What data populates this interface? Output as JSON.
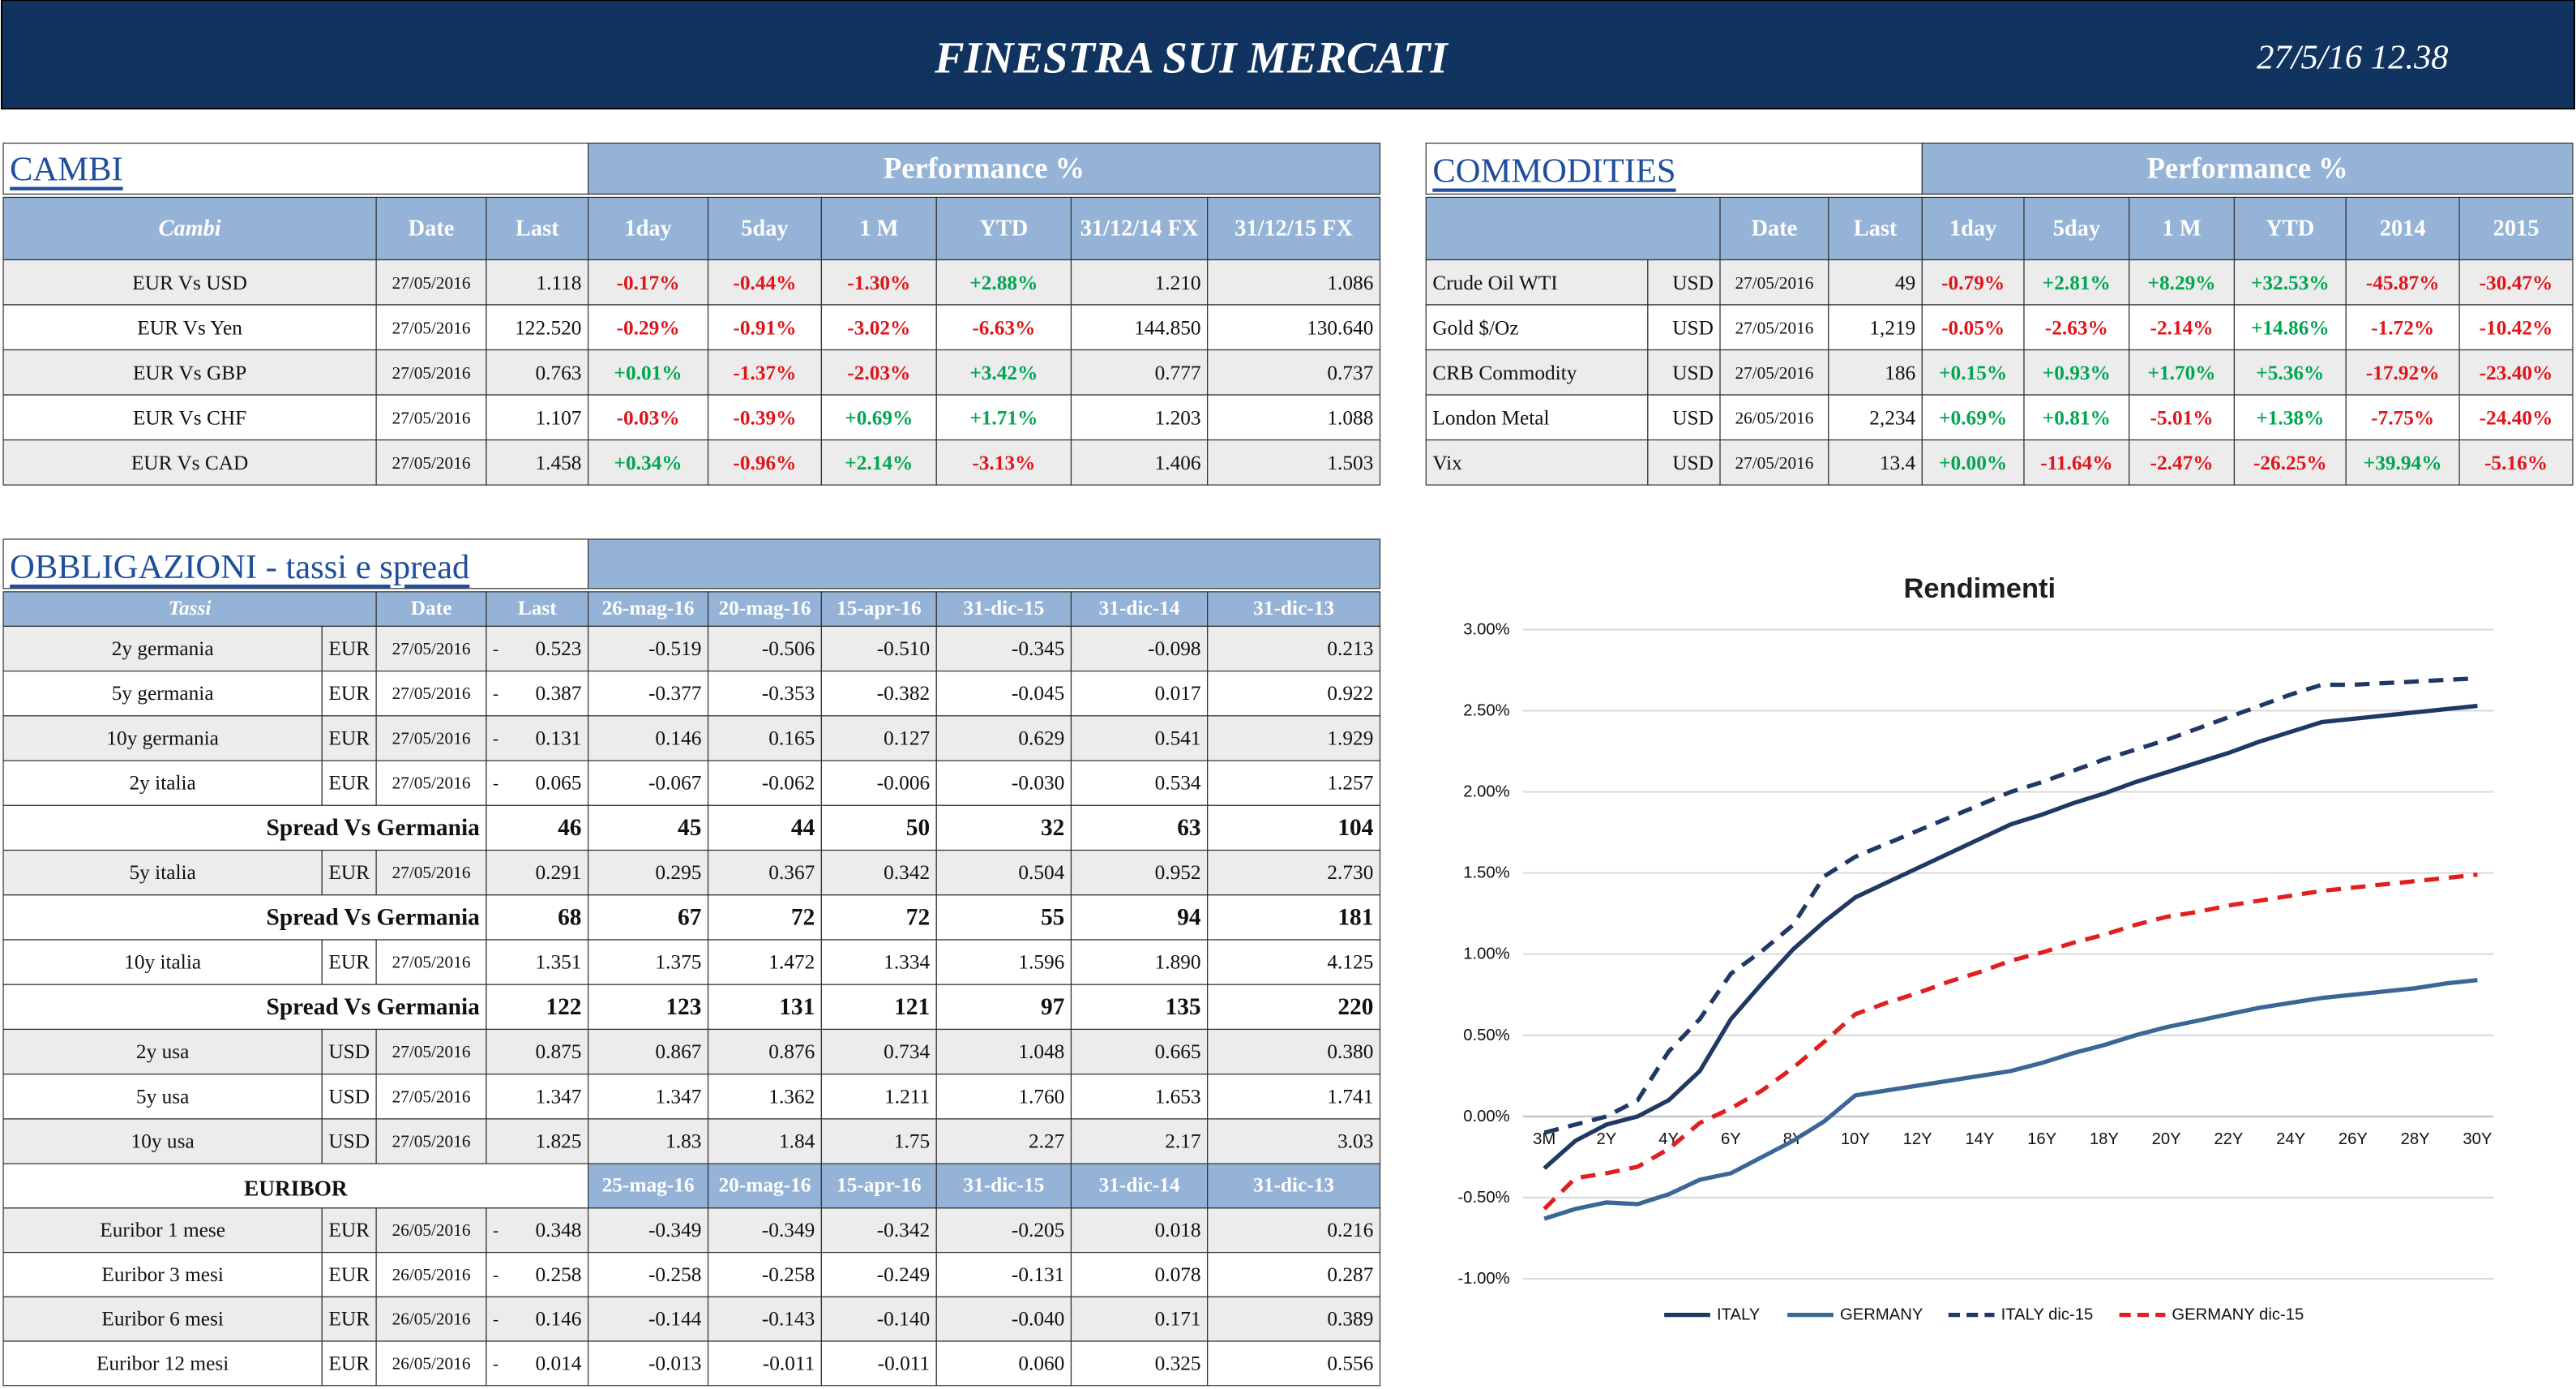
{
  "header": {
    "title": "FINESTRA SUI MERCATI",
    "datetime": "27/5/16 12.38"
  },
  "cambi": {
    "title": "CAMBI",
    "performance_header": "Performance  %",
    "columns": [
      "Cambi",
      "Date",
      "Last",
      "1day",
      "5day",
      "1 M",
      "YTD",
      "31/12/14 FX",
      "31/12/15  FX"
    ],
    "rows": [
      [
        "EUR Vs USD",
        "27/05/2016",
        "1.118",
        "-0.17%",
        "-0.44%",
        "-1.30%",
        "+2.88%",
        "1.210",
        "1.086"
      ],
      [
        "EUR Vs Yen",
        "27/05/2016",
        "122.520",
        "-0.29%",
        "-0.91%",
        "-3.02%",
        "-6.63%",
        "144.850",
        "130.640"
      ],
      [
        "EUR Vs GBP",
        "27/05/2016",
        "0.763",
        "+0.01%",
        "-1.37%",
        "-2.03%",
        "+3.42%",
        "0.777",
        "0.737"
      ],
      [
        "EUR Vs CHF",
        "27/05/2016",
        "1.107",
        "-0.03%",
        "-0.39%",
        "+0.69%",
        "+1.71%",
        "1.203",
        "1.088"
      ],
      [
        "EUR Vs CAD",
        "27/05/2016",
        "1.458",
        "+0.34%",
        "-0.96%",
        "+2.14%",
        "-3.13%",
        "1.406",
        "1.503"
      ]
    ]
  },
  "commodities": {
    "title": "COMMODITIES",
    "performance_header": "Performance  %",
    "columns": [
      "Date",
      "Last",
      "1day",
      "5day",
      "1 M",
      "YTD",
      "2014",
      "2015"
    ],
    "rows": [
      [
        "Crude Oil WTI",
        "USD",
        "27/05/2016",
        "49",
        "-0.79%",
        "+2.81%",
        "+8.29%",
        "+32.53%",
        "-45.87%",
        "-30.47%"
      ],
      [
        "Gold $/Oz",
        "USD",
        "27/05/2016",
        "1,219",
        "-0.05%",
        "-2.63%",
        "-2.14%",
        "+14.86%",
        "-1.72%",
        "-10.42%"
      ],
      [
        "CRB Commodity",
        "USD",
        "27/05/2016",
        "186",
        "+0.15%",
        "+0.93%",
        "+1.70%",
        "+5.36%",
        "-17.92%",
        "-23.40%"
      ],
      [
        "London Metal",
        "USD",
        "26/05/2016",
        "2,234",
        "+0.69%",
        "+0.81%",
        "-5.01%",
        "+1.38%",
        "-7.75%",
        "-24.40%"
      ],
      [
        "Vix",
        "USD",
        "27/05/2016",
        "13.4",
        "+0.00%",
        "-11.64%",
        "-2.47%",
        "-26.25%",
        "+39.94%",
        "-5.16%"
      ]
    ]
  },
  "bonds": {
    "title": "OBBLIGAZIONI - tassi e spread",
    "columns": [
      "Tassi",
      "Date",
      "Last",
      "26-mag-16",
      "20-mag-16",
      "15-apr-16",
      "31-dic-15",
      "31-dic-14",
      "31-dic-13"
    ],
    "rows": [
      {
        "name": "2y germania",
        "currency": "EUR",
        "date": "27/05/2016",
        "flag": "-",
        "last": "0.523",
        "history": [
          "-0.519",
          "-0.506",
          "-0.510",
          "-0.345",
          "-0.098",
          "0.213"
        ]
      },
      {
        "name": "5y germania",
        "currency": "EUR",
        "date": "27/05/2016",
        "flag": "-",
        "last": "0.387",
        "history": [
          "-0.377",
          "-0.353",
          "-0.382",
          "-0.045",
          "0.017",
          "0.922"
        ]
      },
      {
        "name": "10y germania",
        "currency": "EUR",
        "date": "27/05/2016",
        "flag": "-",
        "last": "0.131",
        "history": [
          "0.146",
          "0.165",
          "0.127",
          "0.629",
          "0.541",
          "1.929"
        ]
      },
      {
        "name": "2y italia",
        "currency": "EUR",
        "date": "27/05/2016",
        "flag": "-",
        "last": "0.065",
        "history": [
          "-0.067",
          "-0.062",
          "-0.006",
          "-0.030",
          "0.534",
          "1.257"
        ]
      },
      {
        "label": "Spread Vs Germania",
        "last": "46",
        "history": [
          "45",
          "44",
          "50",
          "32",
          "63",
          "104"
        ]
      },
      {
        "name": "5y italia",
        "currency": "EUR",
        "date": "27/05/2016",
        "last": "0.291",
        "history": [
          "0.295",
          "0.367",
          "0.342",
          "0.504",
          "0.952",
          "2.730"
        ]
      },
      {
        "label": "Spread Vs Germania",
        "last": "68",
        "history": [
          "67",
          "72",
          "72",
          "55",
          "94",
          "181"
        ]
      },
      {
        "name": "10y italia",
        "currency": "EUR",
        "date": "27/05/2016",
        "last": "1.351",
        "history": [
          "1.375",
          "1.472",
          "1.334",
          "1.596",
          "1.890",
          "4.125"
        ]
      },
      {
        "label": "Spread Vs Germania",
        "last": "122",
        "history": [
          "123",
          "131",
          "121",
          "97",
          "135",
          "220"
        ]
      },
      {
        "name": "2y usa",
        "currency": "USD",
        "date": "27/05/2016",
        "last": "0.875",
        "history": [
          "0.867",
          "0.876",
          "0.734",
          "1.048",
          "0.665",
          "0.380"
        ]
      },
      {
        "name": "5y usa",
        "currency": "USD",
        "date": "27/05/2016",
        "last": "1.347",
        "history": [
          "1.347",
          "1.362",
          "1.211",
          "1.760",
          "1.653",
          "1.741"
        ]
      },
      {
        "name": "10y usa",
        "currency": "USD",
        "date": "27/05/2016",
        "last": "1.825",
        "history": [
          "1.83",
          "1.84",
          "1.75",
          "2.27",
          "2.17",
          "3.03"
        ]
      }
    ]
  },
  "euribor": {
    "title": "EURIBOR",
    "columns": [
      "25-mag-16",
      "20-mag-16",
      "15-apr-16",
      "31-dic-15",
      "31-dic-14",
      "31-dic-13"
    ],
    "rows": [
      {
        "name": "Euribor 1 mese",
        "currency": "EUR",
        "date": "26/05/2016",
        "flag": "-",
        "last": "0.348",
        "history": [
          "-0.349",
          "-0.349",
          "-0.342",
          "-0.205",
          "0.018",
          "0.216"
        ]
      },
      {
        "name": "Euribor 3 mesi",
        "currency": "EUR",
        "date": "26/05/2016",
        "flag": "-",
        "last": "0.258",
        "history": [
          "-0.258",
          "-0.258",
          "-0.249",
          "-0.131",
          "0.078",
          "0.287"
        ]
      },
      {
        "name": "Euribor 6 mesi",
        "currency": "EUR",
        "date": "26/05/2016",
        "flag": "-",
        "last": "0.146",
        "history": [
          "-0.144",
          "-0.143",
          "-0.140",
          "-0.040",
          "0.171",
          "0.389"
        ]
      },
      {
        "name": "Euribor 12 mesi",
        "currency": "EUR",
        "date": "26/05/2016",
        "flag": "-",
        "last": "0.014",
        "history": [
          "-0.013",
          "-0.011",
          "-0.011",
          "0.060",
          "0.325",
          "0.556"
        ]
      }
    ]
  },
  "chart_data": {
    "type": "line",
    "title": "Rendimenti",
    "categories": [
      "3M",
      null,
      "2Y",
      null,
      "4Y",
      null,
      "6Y",
      null,
      "8Y",
      null,
      "10Y",
      null,
      "12Y",
      null,
      "14Y",
      null,
      "16Y",
      null,
      "18Y",
      null,
      "20Y",
      null,
      "22Y",
      null,
      "24Y",
      null,
      "26Y",
      null,
      "28Y",
      null,
      "30Y"
    ],
    "series": [
      {
        "name": "ITALY",
        "color": "#1f3864",
        "line_style": "solid",
        "values": [
          -0.32,
          -0.15,
          -0.05,
          0.0,
          0.1,
          0.28,
          0.6,
          0.82,
          1.03,
          1.2,
          1.35,
          1.44,
          1.53,
          1.62,
          1.71,
          1.8,
          1.86,
          1.93,
          1.99,
          2.06,
          2.12,
          2.18,
          2.24,
          2.31,
          2.37,
          2.43,
          2.45,
          2.47,
          2.49,
          2.51,
          2.53
        ]
      },
      {
        "name": "GERMANY",
        "color": "#3b6797",
        "line_style": "solid",
        "values": [
          -0.63,
          -0.57,
          -0.53,
          -0.54,
          -0.48,
          -0.39,
          -0.35,
          -0.25,
          -0.15,
          -0.03,
          0.13,
          0.16,
          0.19,
          0.22,
          0.25,
          0.28,
          0.33,
          0.39,
          0.44,
          0.5,
          0.55,
          0.59,
          0.63,
          0.67,
          0.7,
          0.73,
          0.75,
          0.77,
          0.79,
          0.82,
          0.84
        ]
      },
      {
        "name": "ITALY dic-15",
        "color": "#1f3864",
        "line_style": "dashed",
        "values": [
          -0.1,
          -0.05,
          0.0,
          0.1,
          0.4,
          0.6,
          0.88,
          1.02,
          1.18,
          1.48,
          1.6,
          1.68,
          1.76,
          1.84,
          1.92,
          2.0,
          2.06,
          2.13,
          2.2,
          2.26,
          2.32,
          2.39,
          2.46,
          2.53,
          2.6,
          2.66,
          2.66,
          2.67,
          2.68,
          2.69,
          2.7
        ]
      },
      {
        "name": "GERMANY dic-15",
        "color": "#e02020",
        "line_style": "dashed",
        "values": [
          -0.57,
          -0.38,
          -0.35,
          -0.31,
          -0.2,
          -0.04,
          0.05,
          0.16,
          0.3,
          0.46,
          0.63,
          0.7,
          0.76,
          0.83,
          0.89,
          0.96,
          1.01,
          1.07,
          1.12,
          1.18,
          1.23,
          1.26,
          1.3,
          1.33,
          1.36,
          1.39,
          1.41,
          1.43,
          1.45,
          1.47,
          1.49
        ]
      }
    ],
    "ylim": [
      -1,
      3
    ],
    "yticks": [
      {
        "value": -1,
        "label": "-1.00%"
      },
      {
        "value": -0.5,
        "label": "-0.50%"
      },
      {
        "value": 0,
        "label": "0.00%"
      },
      {
        "value": 0.5,
        "label": "0.50%"
      },
      {
        "value": 1,
        "label": "1.00%"
      },
      {
        "value": 1.5,
        "label": "1.50%"
      },
      {
        "value": 2,
        "label": "2.00%"
      },
      {
        "value": 2.5,
        "label": "2.50%"
      },
      {
        "value": 3,
        "label": "3.00%"
      }
    ],
    "grid": true,
    "legend": "bottom"
  }
}
